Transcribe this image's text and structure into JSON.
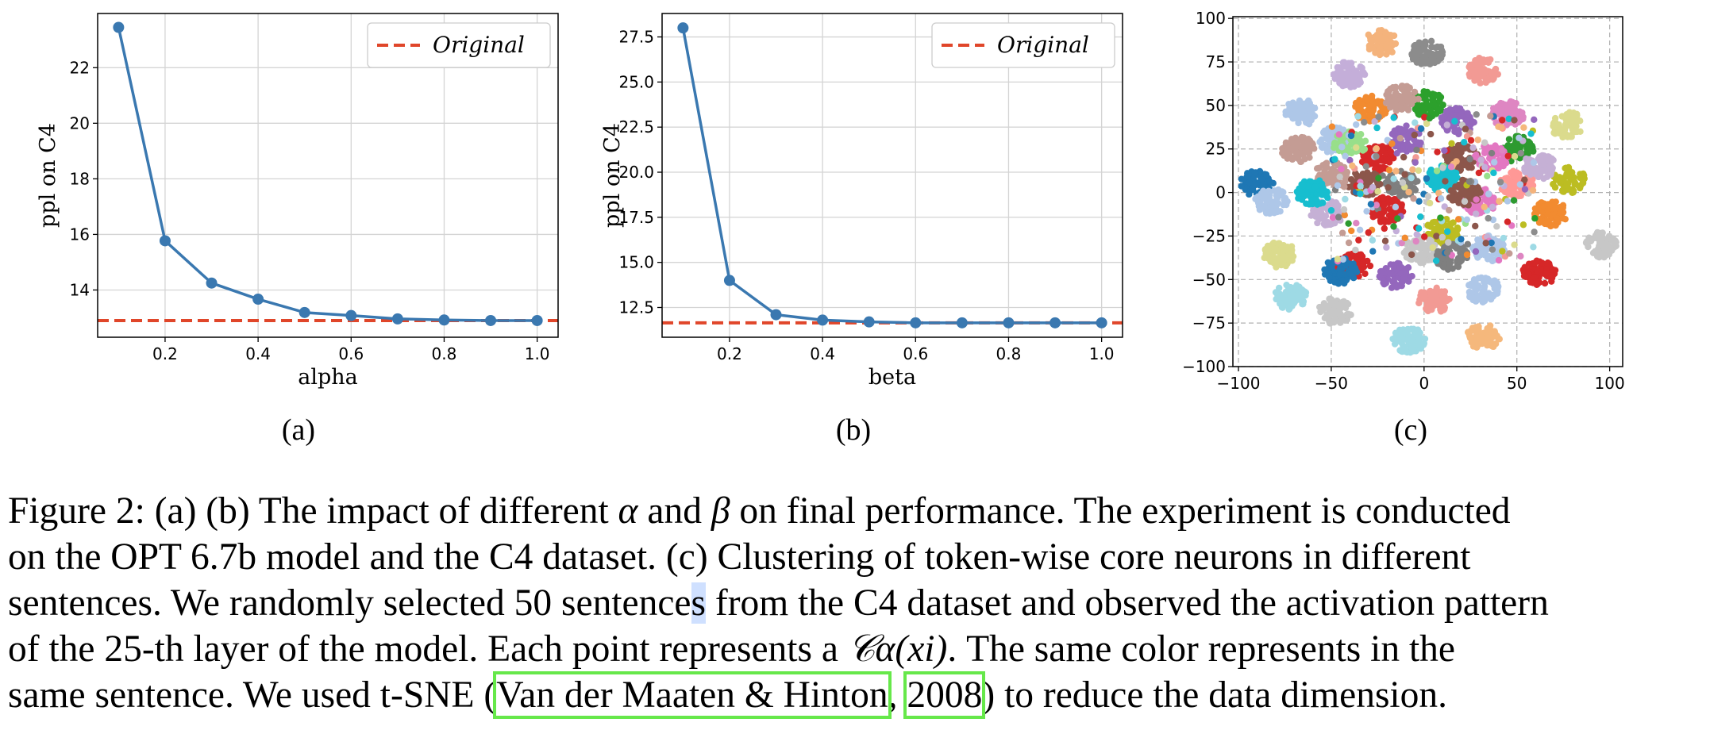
{
  "colors": {
    "line": "#3a78b0",
    "reference": "#e0462a",
    "citation_box": "#66e84a",
    "selection_highlight": "#cfe0ff"
  },
  "chart_data": [
    {
      "type": "line",
      "id": "a",
      "xlabel": "alpha",
      "ylabel": "ppl on C4",
      "x": [
        0.1,
        0.2,
        0.3,
        0.4,
        0.5,
        0.6,
        0.7,
        0.8,
        0.9,
        1.0
      ],
      "series": [
        {
          "values": [
            23.45,
            15.77,
            14.25,
            13.67,
            13.19,
            13.08,
            12.96,
            12.92,
            12.9,
            12.9
          ]
        }
      ],
      "reference_line": {
        "name": "Original",
        "value": 12.9,
        "style": "dashed"
      },
      "xticks": [
        "0.2",
        "0.4",
        "0.6",
        "0.8",
        "1.0"
      ],
      "yticks": [
        "14",
        "16",
        "18",
        "20",
        "22"
      ],
      "xlim": [
        0.055,
        1.045
      ],
      "ylim": [
        12.3,
        23.95
      ],
      "grid": true,
      "legend_position": "top-right"
    },
    {
      "type": "line",
      "id": "b",
      "xlabel": "beta",
      "ylabel": "ppl on C4",
      "x": [
        0.1,
        0.2,
        0.3,
        0.4,
        0.5,
        0.6,
        0.7,
        0.8,
        0.9,
        1.0
      ],
      "series": [
        {
          "values": [
            28.0,
            14.0,
            12.1,
            11.8,
            11.7,
            11.65,
            11.65,
            11.65,
            11.65,
            11.65
          ]
        }
      ],
      "reference_line": {
        "name": "Original",
        "value": 11.65,
        "style": "dashed"
      },
      "xticks": [
        "0.2",
        "0.4",
        "0.6",
        "0.8",
        "1.0"
      ],
      "yticks": [
        "12.5",
        "15.0",
        "17.5",
        "20.0",
        "22.5",
        "25.0",
        "27.5"
      ],
      "xlim": [
        0.055,
        1.045
      ],
      "ylim": [
        10.85,
        28.8
      ],
      "grid": true,
      "legend_position": "top-right"
    },
    {
      "type": "scatter",
      "id": "c",
      "xticks": [
        "−100",
        "−50",
        "0",
        "50",
        "100"
      ],
      "yticks": [
        "−100",
        "−75",
        "−50",
        "−25",
        "0",
        "25",
        "50",
        "75",
        "100"
      ],
      "xlim": [
        -103,
        107
      ],
      "ylim": [
        -100,
        101
      ],
      "grid": true,
      "grid_style": "dashed",
      "clusters": [
        {
          "color": "#8c8c8c",
          "center": [
            2,
            80
          ]
        },
        {
          "color": "#f4b37c",
          "center": [
            -23,
            86
          ]
        },
        {
          "color": "#f29a94",
          "center": [
            32,
            70
          ]
        },
        {
          "color": "#c4aed9",
          "center": [
            -40,
            68
          ]
        },
        {
          "color": "#2ca02c",
          "center": [
            2,
            51
          ]
        },
        {
          "color": "#9467bd",
          "center": [
            18,
            41
          ]
        },
        {
          "color": "#de86c2",
          "center": [
            45,
            45
          ]
        },
        {
          "color": "#aec7e8",
          "center": [
            -66,
            46
          ]
        },
        {
          "color": "#f28b30",
          "center": [
            -29,
            48
          ]
        },
        {
          "color": "#dbdb8d",
          "center": [
            77,
            39
          ]
        },
        {
          "color": "#c49c94",
          "center": [
            -12,
            54
          ]
        },
        {
          "color": "#8c564b",
          "center": [
            20,
            20
          ]
        },
        {
          "color": "#2d9a30",
          "center": [
            50,
            25
          ]
        },
        {
          "color": "#9467bd",
          "center": [
            -10,
            30
          ]
        },
        {
          "color": "#d62728",
          "center": [
            -25,
            20
          ]
        },
        {
          "color": "#c49c94",
          "center": [
            -68,
            25
          ]
        },
        {
          "color": "#aec7e8",
          "center": [
            -48,
            30
          ]
        },
        {
          "color": "#e377c2",
          "center": [
            36,
            20
          ]
        },
        {
          "color": "#1f77b4",
          "center": [
            -90,
            5
          ]
        },
        {
          "color": "#c49c94",
          "center": [
            -50,
            10
          ]
        },
        {
          "color": "#7f7f7f",
          "center": [
            -12,
            5
          ]
        },
        {
          "color": "#8c564b",
          "center": [
            -32,
            5
          ]
        },
        {
          "color": "#bcbd22",
          "center": [
            78,
            7
          ]
        },
        {
          "color": "#17becf",
          "center": [
            10,
            8
          ]
        },
        {
          "color": "#aec7e8",
          "center": [
            -82,
            -5
          ]
        },
        {
          "color": "#c5b0d5",
          "center": [
            -52,
            -12
          ]
        },
        {
          "color": "#e377c2",
          "center": [
            30,
            -5
          ]
        },
        {
          "color": "#d62728",
          "center": [
            -20,
            -10
          ]
        },
        {
          "color": "#f28b30",
          "center": [
            68,
            -12
          ]
        },
        {
          "color": "#bcbd22",
          "center": [
            10,
            -22
          ]
        },
        {
          "color": "#dbdb8d",
          "center": [
            -78,
            -36
          ]
        },
        {
          "color": "#c7c7c7",
          "center": [
            -2,
            -33
          ]
        },
        {
          "color": "#aec7e8",
          "center": [
            35,
            -32
          ]
        },
        {
          "color": "#7f7f7f",
          "center": [
            15,
            -37
          ]
        },
        {
          "color": "#d62728",
          "center": [
            -38,
            -42
          ]
        },
        {
          "color": "#9467bd",
          "center": [
            -15,
            -48
          ]
        },
        {
          "color": "#d62728",
          "center": [
            62,
            -46
          ]
        },
        {
          "color": "#aec7e8",
          "center": [
            32,
            -56
          ]
        },
        {
          "color": "#c7c7c7",
          "center": [
            95,
            -30
          ]
        },
        {
          "color": "#f29a94",
          "center": [
            5,
            -62
          ]
        },
        {
          "color": "#c7c7c7",
          "center": [
            -48,
            -68
          ]
        },
        {
          "color": "#f5b87c",
          "center": [
            32,
            -83
          ]
        },
        {
          "color": "#9edae5",
          "center": [
            -8,
            -85
          ]
        },
        {
          "color": "#98df8a",
          "center": [
            -40,
            28
          ]
        },
        {
          "color": "#ff9896",
          "center": [
            50,
            5
          ]
        },
        {
          "color": "#17becf",
          "center": [
            -60,
            0
          ]
        },
        {
          "color": "#1f77b4",
          "center": [
            -45,
            -45
          ]
        },
        {
          "color": "#9edae5",
          "center": [
            -72,
            -60
          ]
        },
        {
          "color": "#c5b0d5",
          "center": [
            62,
            15
          ]
        },
        {
          "color": "#8c564b",
          "center": [
            22,
            0
          ]
        }
      ]
    }
  ],
  "figure": {
    "sublabels": [
      "(a)",
      "(b)",
      "(c)"
    ],
    "caption": {
      "l1a": "Figure 2: (a) (b) The impact of different ",
      "alpha": "α",
      "and": " and ",
      "beta": "β",
      "l1b": " on final performance. The experiment is conducted",
      "l2": "on the OPT 6.7b model and the C4 dataset. (c) Clustering of token-wise core neurons in different",
      "l3a": "sentences. We randomly selected 50 sentence",
      "l3hl": "s",
      "l3b": " from the C4 dataset and observed the activation pattern",
      "l4a": "of the 25-th layer of the model. Each point represents a ",
      "formula": "𝒞α(xi)",
      "l4b": ". The same color represents in the",
      "l5a": "same sentence. We used t-SNE (",
      "cite_authors": "Van der Maaten & Hinton",
      "comma": ", ",
      "cite_year": "2008",
      "l5b": ") to reduce the data dimension."
    }
  }
}
